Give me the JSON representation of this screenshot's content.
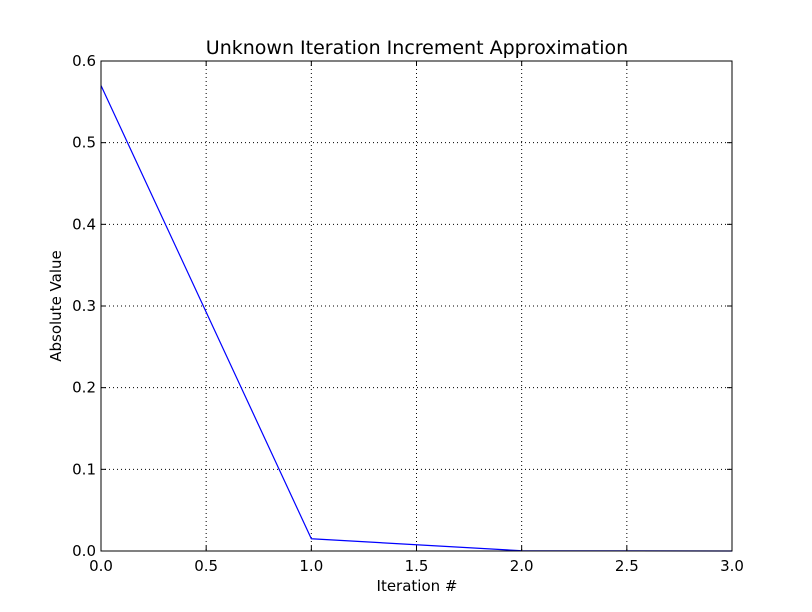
{
  "chart_data": {
    "type": "line",
    "title": "Unknown Iteration Increment Approximation",
    "xlabel": "Iteration #",
    "ylabel": "Absolute Value",
    "xlim": [
      0,
      3
    ],
    "ylim": [
      0,
      0.6
    ],
    "xticks": [
      0.0,
      0.5,
      1.0,
      1.5,
      2.0,
      2.5,
      3.0
    ],
    "xtick_labels": [
      "0.0",
      "0.5",
      "1.0",
      "1.5",
      "2.0",
      "2.5",
      "3.0"
    ],
    "yticks": [
      0.0,
      0.1,
      0.2,
      0.3,
      0.4,
      0.5,
      0.6
    ],
    "ytick_labels": [
      "0.0",
      "0.1",
      "0.2",
      "0.3",
      "0.4",
      "0.5",
      "0.6"
    ],
    "grid": true,
    "legend": "none",
    "colors": {
      "line": "#0000ff",
      "axes": "#000000",
      "grid": "#000000",
      "background": "#ffffff"
    },
    "series": [
      {
        "x": [
          0,
          1,
          2,
          3
        ],
        "y": [
          0.57,
          0.015,
          0.0003,
          0.0
        ]
      }
    ]
  }
}
